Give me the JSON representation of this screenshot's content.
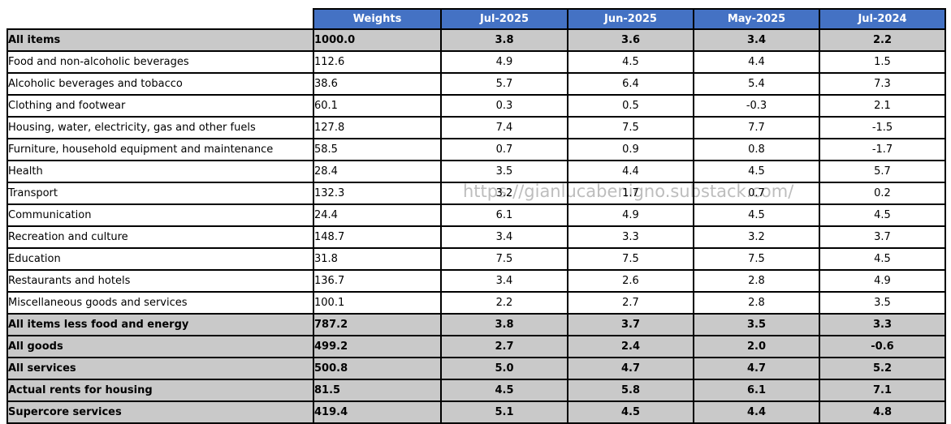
{
  "watermark": "https://gianlucabenigno.substack.com/",
  "colors": {
    "header_bg": "#4472C4",
    "header_text": "#FFFFFF",
    "summary_row_bg": "#C9C9C9",
    "normal_row_bg": "#FFFFFF",
    "border": "#000000",
    "watermark_text": "#BDBDBD"
  },
  "chart_data": {
    "type": "table",
    "columns": [
      "",
      "Weights",
      "Jul-2025",
      "Jun-2025",
      "May-2025",
      "Jul-2024"
    ],
    "rows": [
      {
        "label": "All items",
        "bold": true,
        "values": [
          "1000.0",
          "3.8",
          "3.6",
          "3.4",
          "2.2"
        ]
      },
      {
        "label": "Food and non-alcoholic beverages",
        "bold": false,
        "values": [
          "112.6",
          "4.9",
          "4.5",
          "4.4",
          "1.5"
        ]
      },
      {
        "label": "Alcoholic beverages and tobacco",
        "bold": false,
        "values": [
          "38.6",
          "5.7",
          "6.4",
          "5.4",
          "7.3"
        ]
      },
      {
        "label": "Clothing and footwear",
        "bold": false,
        "values": [
          "60.1",
          "0.3",
          "0.5",
          "-0.3",
          "2.1"
        ]
      },
      {
        "label": "Housing, water, electricity, gas and other fuels",
        "bold": false,
        "values": [
          "127.8",
          "7.4",
          "7.5",
          "7.7",
          "-1.5"
        ]
      },
      {
        "label": "Furniture, household equipment and maintenance",
        "bold": false,
        "values": [
          "58.5",
          "0.7",
          "0.9",
          "0.8",
          "-1.7"
        ]
      },
      {
        "label": "Health",
        "bold": false,
        "values": [
          "28.4",
          "3.5",
          "4.4",
          "4.5",
          "5.7"
        ]
      },
      {
        "label": "Transport",
        "bold": false,
        "values": [
          "132.3",
          "3.2",
          "1.7",
          "0.7",
          "0.2"
        ]
      },
      {
        "label": "Communication",
        "bold": false,
        "values": [
          "24.4",
          "6.1",
          "4.9",
          "4.5",
          "4.5"
        ]
      },
      {
        "label": "Recreation and culture",
        "bold": false,
        "values": [
          "148.7",
          "3.4",
          "3.3",
          "3.2",
          "3.7"
        ]
      },
      {
        "label": "Education",
        "bold": false,
        "values": [
          "31.8",
          "7.5",
          "7.5",
          "7.5",
          "4.5"
        ]
      },
      {
        "label": "Restaurants and hotels",
        "bold": false,
        "values": [
          "136.7",
          "3.4",
          "2.6",
          "2.8",
          "4.9"
        ]
      },
      {
        "label": "Miscellaneous goods and services",
        "bold": false,
        "values": [
          "100.1",
          "2.2",
          "2.7",
          "2.8",
          "3.5"
        ]
      },
      {
        "label": "All items less food and energy",
        "bold": true,
        "values": [
          "787.2",
          "3.8",
          "3.7",
          "3.5",
          "3.3"
        ]
      },
      {
        "label": "All goods",
        "bold": true,
        "values": [
          "499.2",
          "2.7",
          "2.4",
          "2.0",
          "-0.6"
        ]
      },
      {
        "label": "All services",
        "bold": true,
        "values": [
          "500.8",
          "5.0",
          "4.7",
          "4.7",
          "5.2"
        ]
      },
      {
        "label": "Actual rents for housing",
        "bold": true,
        "values": [
          "81.5",
          "4.5",
          "5.8",
          "6.1",
          "7.1"
        ]
      },
      {
        "label": "Supercore services",
        "bold": true,
        "values": [
          "419.4",
          "5.1",
          "4.5",
          "4.4",
          "4.8"
        ]
      }
    ]
  }
}
